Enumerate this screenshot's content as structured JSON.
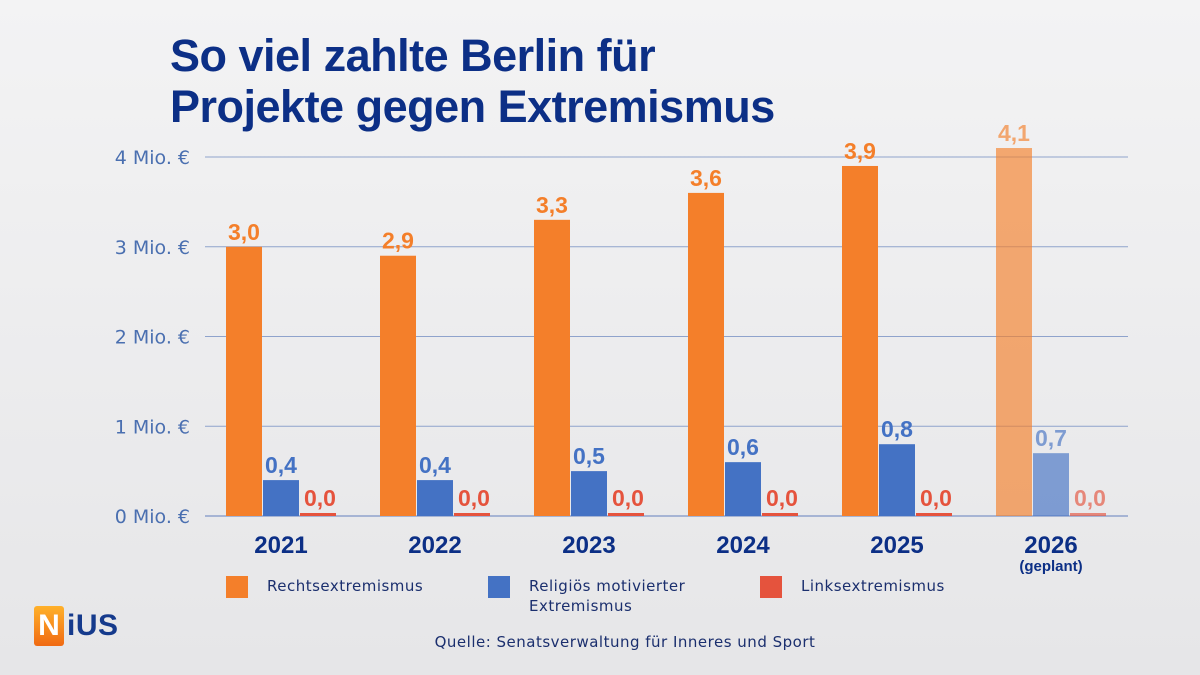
{
  "title_line1": "So viel zahlte Berlin für",
  "title_line2": "Projekte gegen Extremismus",
  "source": "Quelle: Senatsverwaltung für Inneres und Sport",
  "logo": {
    "first": "N",
    "rest": "iUS",
    "text": "NiUS"
  },
  "colors": {
    "title": "#0c2f86",
    "axis_text": "#4a6fb0",
    "grid": "#8fa3cc",
    "rechts": "#f47f2a",
    "religioes": "#4472c4",
    "links": "#e5533d"
  },
  "chart_data": {
    "type": "bar",
    "categories": [
      "2021",
      "2022",
      "2023",
      "2024",
      "2025",
      "2026"
    ],
    "category_notes": [
      "",
      "",
      "",
      "",
      "",
      "(geplant)"
    ],
    "planned_index": 5,
    "ylabel": "",
    "ylim": [
      0,
      4
    ],
    "yticks": [
      {
        "value": 0,
        "label": "0 Mio. €"
      },
      {
        "value": 1,
        "label": "1 Mio. €"
      },
      {
        "value": 2,
        "label": "2 Mio. €"
      },
      {
        "value": 3,
        "label": "3 Mio. €"
      },
      {
        "value": 4,
        "label": "4 Mio. €"
      }
    ],
    "grid": true,
    "legend_position": "bottom",
    "series": [
      {
        "name": "Rechtsextremismus",
        "color": "#f47f2a",
        "values": [
          3.0,
          2.9,
          3.3,
          3.6,
          3.9,
          4.1
        ],
        "labels": [
          "3,0",
          "2,9",
          "3,3",
          "3,6",
          "3,9",
          "4,1"
        ]
      },
      {
        "name": "Religiös motivierter Extremismus",
        "color": "#4472c4",
        "values": [
          0.4,
          0.4,
          0.5,
          0.6,
          0.8,
          0.7
        ],
        "labels": [
          "0,4",
          "0,4",
          "0,5",
          "0,6",
          "0,8",
          "0,7"
        ]
      },
      {
        "name": "Linksextremismus",
        "color": "#e5533d",
        "values": [
          0.0,
          0.0,
          0.0,
          0.0,
          0.0,
          0.0
        ],
        "labels": [
          "0,0",
          "0,0",
          "0,0",
          "0,0",
          "0,0",
          "0,0"
        ]
      }
    ],
    "legend": [
      {
        "line1": "Rechtsextremismus",
        "line2": ""
      },
      {
        "line1": "Religiös motivierter",
        "line2": "Extremismus"
      },
      {
        "line1": "Linksextremismus",
        "line2": ""
      }
    ]
  }
}
